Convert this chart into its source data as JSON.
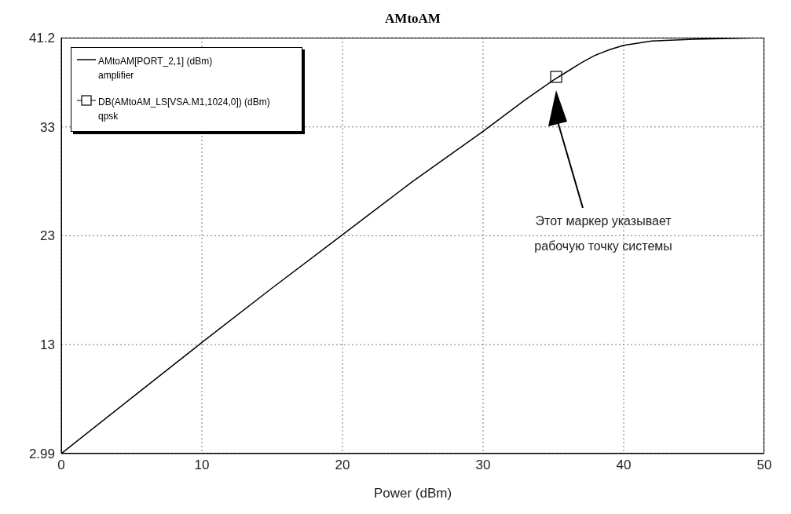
{
  "chart_data": {
    "type": "line",
    "title": "AMtoAM",
    "xlabel": "Power (dBm)",
    "series": [
      {
        "name": "AMtoAM[PORT_2,1] (dBm)\namplifier",
        "color": "#000000",
        "marker": "none",
        "x": [
          0,
          5,
          10,
          15,
          20,
          25,
          30,
          33,
          35,
          36,
          37,
          38,
          39,
          40,
          42,
          45,
          50
        ],
        "values": [
          2.99,
          8.1,
          13.2,
          18.2,
          23.1,
          28.0,
          32.6,
          35.5,
          37.3,
          38.1,
          38.9,
          39.6,
          40.1,
          40.5,
          40.9,
          41.05,
          41.2
        ]
      },
      {
        "name": "DB(AMtoAM_LS[VSA.M1,1024,0]) (dBm)\nqpsk",
        "color": "#000000",
        "type": "scatter",
        "marker": "square",
        "x": [
          35.2
        ],
        "values": [
          37.6
        ]
      }
    ],
    "annotations": [
      "Этот маркер указывает рабочую точку системы"
    ],
    "xlim": [
      0,
      50
    ],
    "xticks": [
      0,
      10,
      20,
      30,
      40,
      50
    ],
    "ylim": [
      2.99,
      41.2
    ],
    "yticks": [
      2.99,
      13,
      23,
      33,
      41.2
    ],
    "grid": true,
    "legend": "top left",
    "line_style": "solid"
  }
}
